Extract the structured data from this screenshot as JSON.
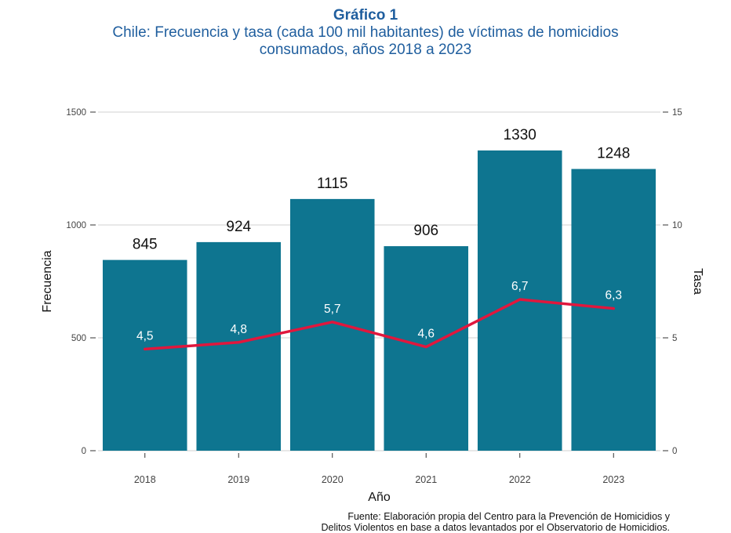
{
  "header": {
    "title": "Gráfico 1",
    "subtitle_line1": "Chile: Frecuencia y tasa (cada 100 mil habitantes) de víctimas de homicidios",
    "subtitle_line2": "consumados, años 2018 a 2023"
  },
  "source": {
    "line1": "Fuente: Elaboración propia del Centro para la Prevención de Homicidios y",
    "line2": "Delitos Violentos en base a datos levantados por el Observatorio de Homicidios."
  },
  "colors": {
    "bar": "#0e7590",
    "line": "#e0173d",
    "title": "#1f5e9e"
  },
  "chart_data": {
    "type": "bar",
    "categories": [
      "2018",
      "2019",
      "2020",
      "2021",
      "2022",
      "2023"
    ],
    "series": [
      {
        "name": "Frecuencia",
        "type": "bar",
        "axis": "left",
        "values": [
          845,
          924,
          1115,
          906,
          1330,
          1248
        ],
        "labels": [
          "845",
          "924",
          "1115",
          "906",
          "1330",
          "1248"
        ]
      },
      {
        "name": "Tasa",
        "type": "line",
        "axis": "right",
        "values": [
          4.5,
          4.8,
          5.7,
          4.6,
          6.7,
          6.3
        ],
        "labels": [
          "4,5",
          "4,8",
          "5,7",
          "4,6",
          "6,7",
          "6,3"
        ]
      }
    ],
    "xlabel": "Año",
    "ylabel": "Frecuencia",
    "y2label": "Tasa",
    "ylim": [
      0,
      1500
    ],
    "y2lim": [
      0,
      15
    ],
    "yticks": [
      "0",
      "500",
      "1000",
      "1500"
    ],
    "y2ticks": [
      "0",
      "5",
      "10",
      "15"
    ],
    "grid": true
  }
}
